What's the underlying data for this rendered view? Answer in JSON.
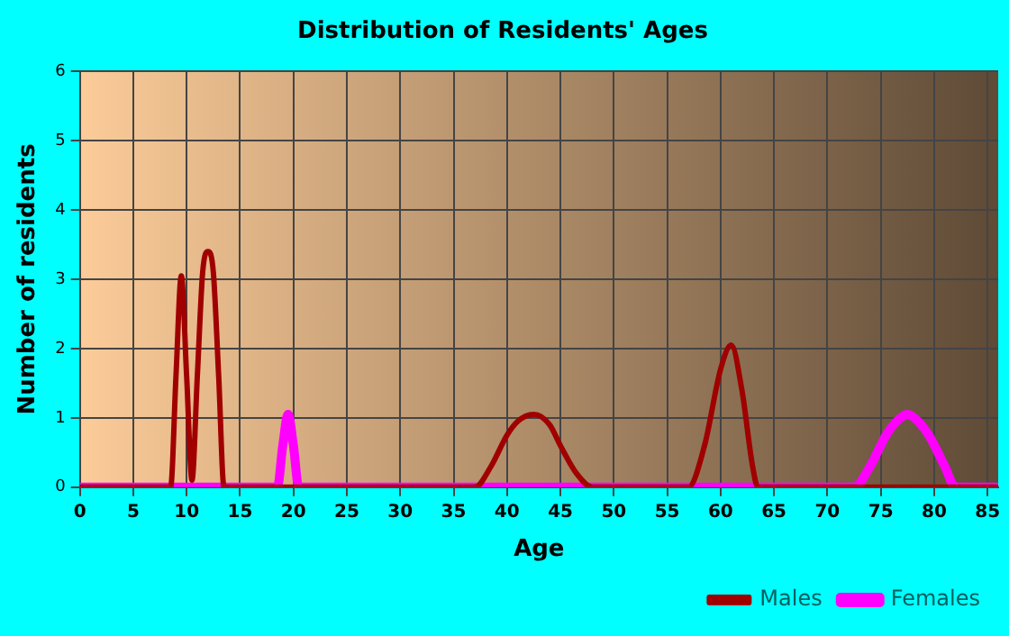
{
  "chart_data": {
    "type": "line",
    "title": "Distribution of Residents' Ages",
    "xlabel": "Age",
    "ylabel": "Number of residents",
    "xlim": [
      0,
      86
    ],
    "xticks": [
      0,
      5,
      10,
      15,
      20,
      25,
      30,
      35,
      40,
      45,
      50,
      55,
      60,
      65,
      70,
      75,
      80,
      85
    ],
    "ylim": [
      0,
      6
    ],
    "yticks": [
      0,
      1,
      2,
      3,
      4,
      5,
      6
    ],
    "grid": true,
    "legend": "bottom right",
    "marker": "none",
    "line_style": "solid",
    "series": [
      {
        "name": "Males",
        "color": "#a00000",
        "x": [
          0,
          8.5,
          9,
          9.5,
          10,
          10.5,
          11,
          11.5,
          12,
          12.5,
          13,
          13.5,
          37,
          38.5,
          40,
          41,
          42.5,
          44,
          45,
          46.5,
          48,
          57,
          58.5,
          60,
          61,
          62,
          63,
          63.5,
          86
        ],
        "values": [
          0,
          0,
          1.6,
          3.05,
          1.6,
          0.1,
          1.6,
          3.1,
          3.4,
          3.1,
          1.6,
          0,
          0,
          0.3,
          0.75,
          0.95,
          1.05,
          0.9,
          0.6,
          0.2,
          0,
          0,
          0.6,
          1.7,
          2.05,
          1.4,
          0.3,
          0,
          0
        ]
      },
      {
        "name": "Females",
        "color": "#ff00ff",
        "x": [
          0,
          18.5,
          19,
          19.5,
          20,
          20.5,
          72.5,
          74,
          75.5,
          76.5,
          77.5,
          78.5,
          79.5,
          81,
          82,
          86
        ],
        "values": [
          0,
          0,
          0.6,
          1.05,
          0.6,
          0,
          0,
          0.3,
          0.75,
          0.95,
          1.05,
          0.95,
          0.75,
          0.3,
          0,
          0
        ]
      }
    ]
  }
}
